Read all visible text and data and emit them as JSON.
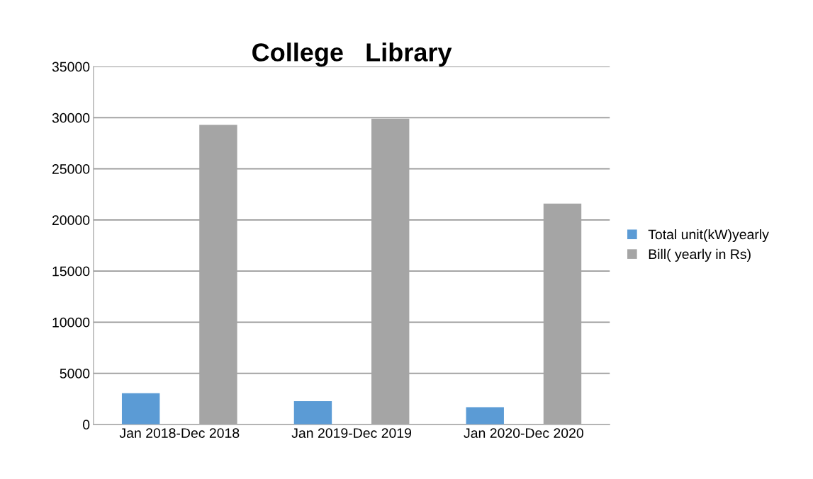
{
  "chart_data": {
    "type": "bar",
    "title": "College   Library",
    "categories": [
      "Jan 2018-Dec 2018",
      "Jan 2019-Dec 2019",
      "Jan 2020-Dec 2020"
    ],
    "series": [
      {
        "name": "Total unit(kW)yearly",
        "color": "#5b9bd5",
        "values": [
          3050,
          2280,
          1690
        ]
      },
      {
        "name": "Bill( yearly in Rs)",
        "color": "#a5a5a5",
        "values": [
          29300,
          29900,
          21600
        ]
      }
    ],
    "ylim": [
      0,
      35000
    ],
    "yticks": [
      0,
      5000,
      10000,
      15000,
      20000,
      25000,
      30000,
      35000
    ],
    "grid": "y",
    "legend": "right"
  }
}
